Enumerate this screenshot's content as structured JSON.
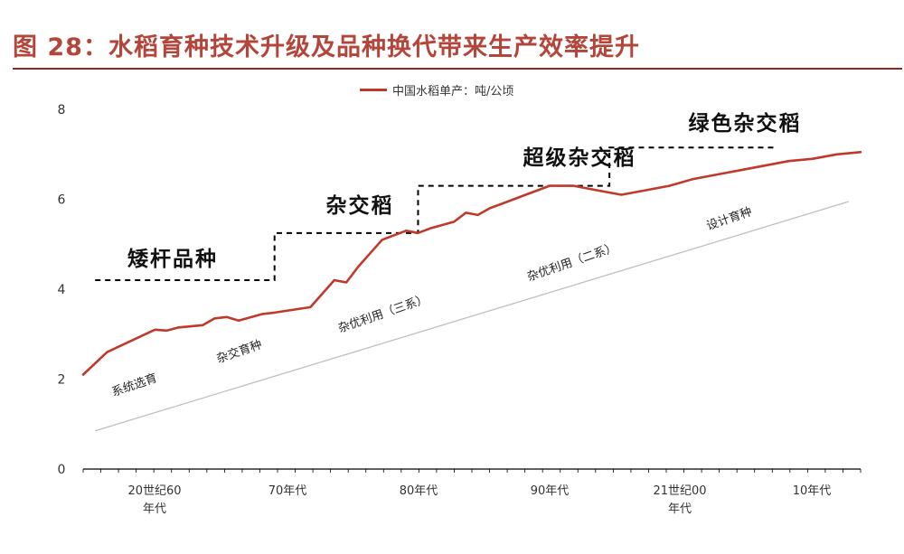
{
  "figure": {
    "title": "图 28：水稻育种技术升级及品种换代带来生产效率提升"
  },
  "colors": {
    "title": "#b4453a",
    "rule": "#8b2a22",
    "series": "#c0392b",
    "trend": "#bfbfbf",
    "steps": "#000000",
    "axis": "#000000"
  },
  "chart_data": {
    "type": "line",
    "title": "",
    "xlabel": "",
    "ylabel": "",
    "ylim": [
      0,
      8
    ],
    "yticks": [
      0,
      2,
      4,
      6,
      8
    ],
    "x_tick_labels": [
      "20世纪60\n年代",
      "70年代",
      "80年代",
      "90年代",
      "21世纪00\n年代",
      "10年代"
    ],
    "x_range": [
      1955,
      2020
    ],
    "legend": {
      "position": "top-center",
      "entries": [
        "中国水稻单产：吨/公顷"
      ]
    },
    "grid": false,
    "series": [
      {
        "name": "中国水稻单产：吨/公顷",
        "x": [
          1955,
          1957,
          1959,
          1961,
          1962,
          1963,
          1965,
          1966,
          1967,
          1968,
          1970,
          1971,
          1972,
          1974,
          1976,
          1977,
          1978,
          1979,
          1980,
          1982,
          1983,
          1984,
          1986,
          1987,
          1988,
          1989,
          1990,
          1992,
          1994,
          1996,
          1998,
          2000,
          2002,
          2004,
          2006,
          2008,
          2010,
          2012,
          2014,
          2016,
          2018,
          2020
        ],
        "y": [
          2.1,
          2.6,
          2.85,
          3.1,
          3.08,
          3.15,
          3.2,
          3.35,
          3.38,
          3.3,
          3.45,
          3.48,
          3.52,
          3.6,
          4.2,
          4.15,
          4.5,
          4.8,
          5.1,
          5.3,
          5.25,
          5.35,
          5.5,
          5.7,
          5.65,
          5.8,
          5.9,
          6.1,
          6.3,
          6.3,
          6.2,
          6.1,
          6.2,
          6.3,
          6.45,
          6.55,
          6.65,
          6.75,
          6.85,
          6.9,
          7.0,
          7.05
        ]
      }
    ],
    "steps": [
      {
        "label": "矮杆品种",
        "x": [
          1956,
          1971
        ],
        "y": 4.2
      },
      {
        "label": "杂交稻",
        "x": [
          1971,
          1983
        ],
        "y": 5.25
      },
      {
        "label": "超级杂交稻",
        "x": [
          1983,
          1999
        ],
        "y": 6.3
      },
      {
        "label": "绿色杂交稻",
        "x": [
          1999,
          2013
        ],
        "y": 7.15
      }
    ],
    "trend": {
      "x": [
        1956,
        2019
      ],
      "y": [
        0.85,
        5.95
      ]
    },
    "annotations": [
      "系统选育",
      "杂交育种",
      "杂优利用（三系）",
      "杂优利用（二系）",
      "设计育种"
    ]
  }
}
